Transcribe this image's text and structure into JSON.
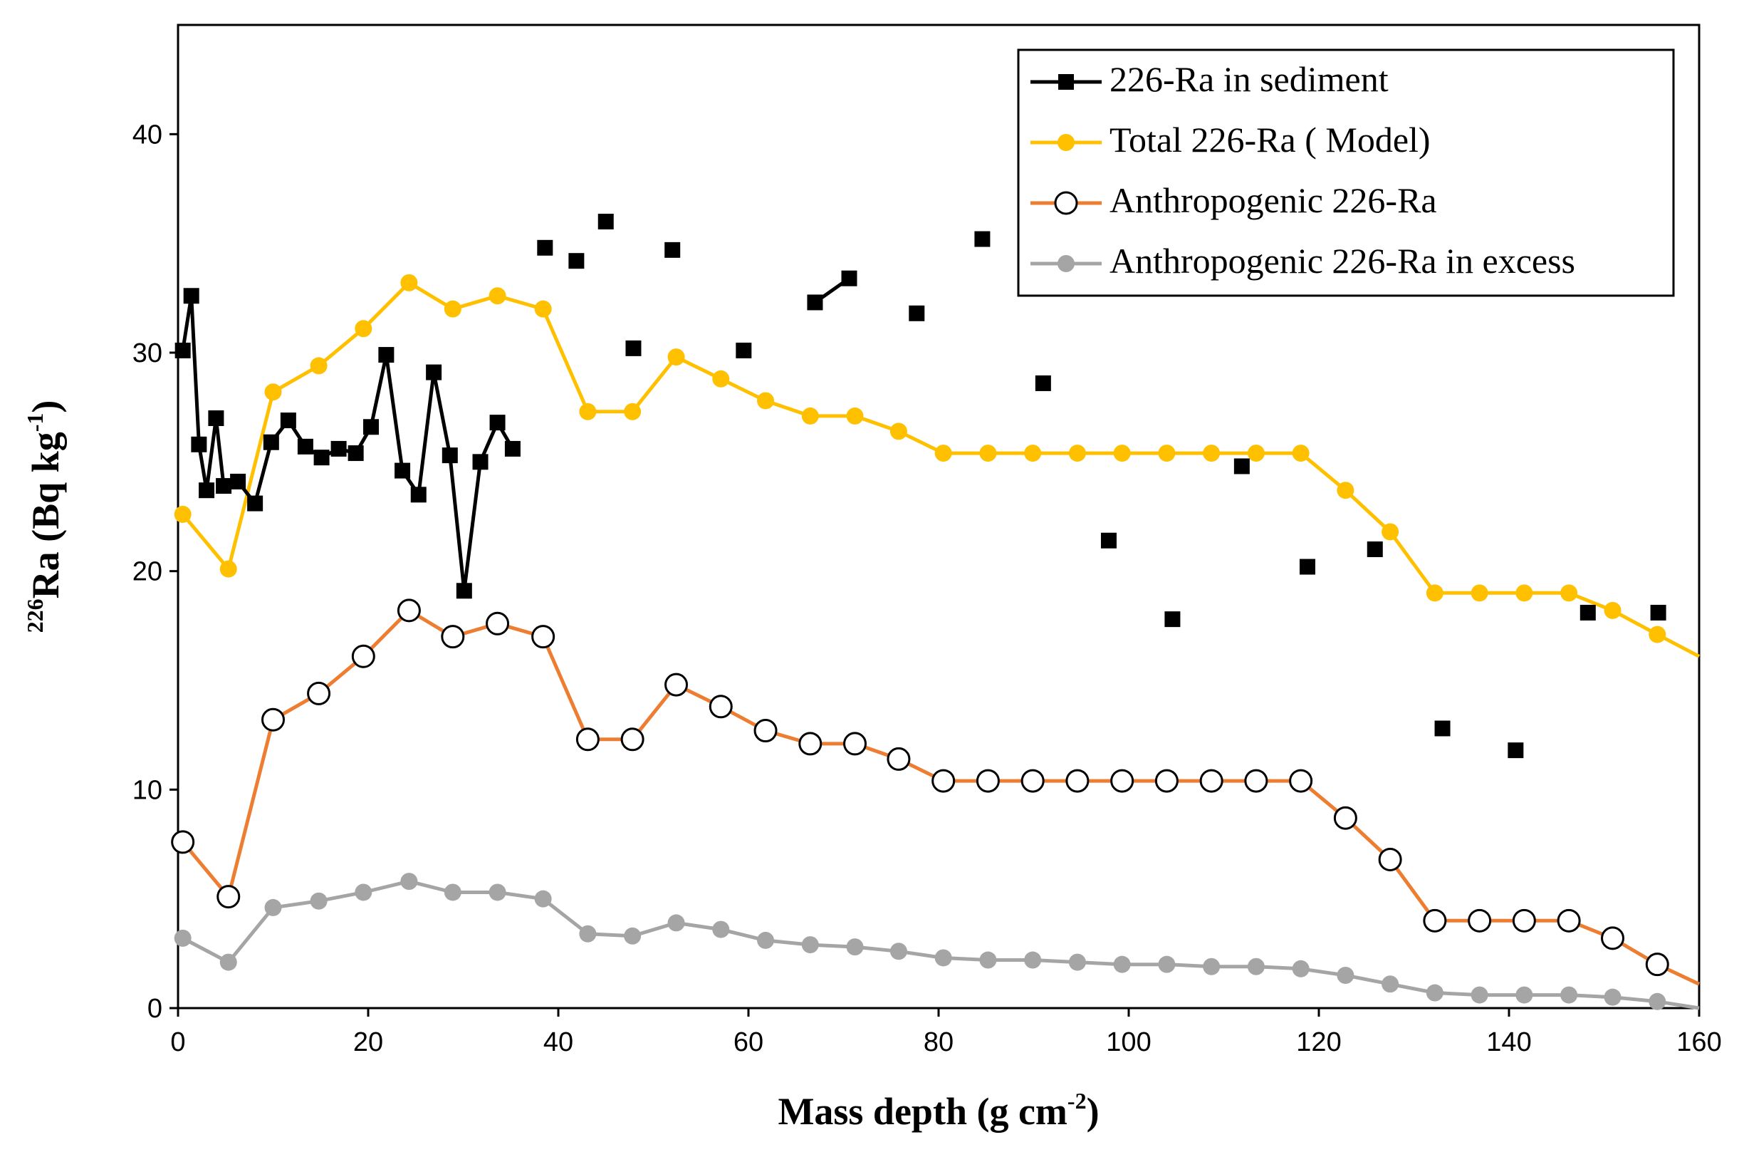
{
  "chart_data": {
    "type": "line",
    "xlabel_main": "Mass depth (g cm",
    "xlabel_sup": "-2",
    "xlabel_end": ")",
    "ylabel_sup_pre": "226",
    "ylabel_main": "Ra (Bq kg",
    "ylabel_sup": "-1",
    "ylabel_end": ")",
    "xlim": [
      0,
      160
    ],
    "ylim": [
      0,
      45
    ],
    "xticks": [
      0,
      20,
      40,
      60,
      80,
      100,
      120,
      140,
      160
    ],
    "yticks": [
      0,
      10,
      20,
      30,
      40
    ],
    "legend_position": "top-right",
    "series": [
      {
        "name": "226-Ra in sediment",
        "color": "#000000",
        "marker": "square",
        "connected": [
          [
            0.5,
            30.1
          ],
          [
            1.4,
            32.6
          ],
          [
            2.2,
            25.8
          ],
          [
            3.0,
            23.7
          ],
          [
            4.0,
            27.0
          ],
          [
            4.8,
            23.9
          ],
          [
            6.3,
            24.1
          ],
          [
            8.1,
            23.1
          ],
          [
            9.8,
            25.9
          ],
          [
            11.6,
            26.9
          ],
          [
            13.4,
            25.7
          ],
          [
            15.1,
            25.2
          ],
          [
            16.9,
            25.6
          ],
          [
            18.7,
            25.4
          ],
          [
            20.3,
            26.6
          ],
          [
            21.9,
            29.9
          ],
          [
            23.6,
            24.6
          ],
          [
            25.3,
            23.5
          ],
          [
            26.9,
            29.1
          ],
          [
            28.6,
            25.3
          ],
          [
            30.1,
            19.1
          ],
          [
            31.8,
            25.0
          ],
          [
            33.6,
            26.8
          ],
          [
            35.2,
            25.6
          ]
        ],
        "connected_pair": [
          [
            67.0,
            32.3
          ],
          [
            70.6,
            33.4
          ]
        ],
        "scattered": [
          [
            38.6,
            34.8
          ],
          [
            41.9,
            34.2
          ],
          [
            45.0,
            36.0
          ],
          [
            47.9,
            30.2
          ],
          [
            52.0,
            34.7
          ],
          [
            59.5,
            30.1
          ],
          [
            77.7,
            31.8
          ],
          [
            84.6,
            35.2
          ],
          [
            91.0,
            28.6
          ],
          [
            97.9,
            21.4
          ],
          [
            104.6,
            17.8
          ],
          [
            111.9,
            24.8
          ],
          [
            118.8,
            20.2
          ],
          [
            125.9,
            21.0
          ],
          [
            133.0,
            12.8
          ],
          [
            140.7,
            11.8
          ],
          [
            148.3,
            18.1
          ],
          [
            155.7,
            18.1
          ]
        ]
      },
      {
        "name": "Total 226-Ra ( Model)",
        "color": "#FFC000",
        "marker": "circle-filled",
        "x": [
          0.5,
          5.3,
          10.0,
          14.8,
          19.5,
          24.3,
          28.9,
          33.6,
          38.4,
          43.1,
          47.8,
          52.4,
          57.1,
          61.8,
          66.5,
          71.2,
          75.8,
          80.5,
          85.2,
          89.9,
          94.6,
          99.3,
          104.0,
          108.7,
          113.4,
          118.1,
          122.8,
          127.5,
          132.2,
          136.9,
          141.6,
          146.3,
          150.9,
          155.6,
          160.0
        ],
        "values": [
          22.6,
          20.1,
          28.2,
          29.4,
          31.1,
          33.2,
          32.0,
          32.6,
          32.0,
          27.3,
          27.3,
          29.8,
          28.8,
          27.8,
          27.1,
          27.1,
          26.4,
          25.4,
          25.4,
          25.4,
          25.4,
          25.4,
          25.4,
          25.4,
          25.4,
          25.4,
          23.7,
          21.8,
          19.0,
          19.0,
          19.0,
          19.0,
          18.2,
          17.1,
          16.1
        ]
      },
      {
        "name": "Anthropogenic 226-Ra",
        "color": "#ED7D31",
        "marker": "circle-open",
        "x": [
          0.5,
          5.3,
          10.0,
          14.8,
          19.5,
          24.3,
          28.9,
          33.6,
          38.4,
          43.1,
          47.8,
          52.4,
          57.1,
          61.8,
          66.5,
          71.2,
          75.8,
          80.5,
          85.2,
          89.9,
          94.6,
          99.3,
          104.0,
          108.7,
          113.4,
          118.1,
          122.8,
          127.5,
          132.2,
          136.9,
          141.6,
          146.3,
          150.9,
          155.6,
          160.0
        ],
        "values": [
          7.6,
          5.1,
          13.2,
          14.4,
          16.1,
          18.2,
          17.0,
          17.6,
          17.0,
          12.3,
          12.3,
          14.8,
          13.8,
          12.7,
          12.1,
          12.1,
          11.4,
          10.4,
          10.4,
          10.4,
          10.4,
          10.4,
          10.4,
          10.4,
          10.4,
          10.4,
          8.7,
          6.8,
          4.0,
          4.0,
          4.0,
          4.0,
          3.2,
          2.0,
          1.1
        ]
      },
      {
        "name": "Anthropogenic 226-Ra in excess",
        "color": "#A5A5A5",
        "marker": "circle-filled",
        "x": [
          0.5,
          5.3,
          10.0,
          14.8,
          19.5,
          24.3,
          28.9,
          33.6,
          38.4,
          43.1,
          47.8,
          52.4,
          57.1,
          61.8,
          66.5,
          71.2,
          75.8,
          80.5,
          85.2,
          89.9,
          94.6,
          99.3,
          104.0,
          108.7,
          113.4,
          118.1,
          122.8,
          127.5,
          132.2,
          136.9,
          141.6,
          146.3,
          150.9,
          155.6,
          160.0
        ],
        "values": [
          3.2,
          2.1,
          4.6,
          4.9,
          5.3,
          5.8,
          5.3,
          5.3,
          5.0,
          3.4,
          3.3,
          3.9,
          3.6,
          3.1,
          2.9,
          2.8,
          2.6,
          2.3,
          2.2,
          2.2,
          2.1,
          2.0,
          2.0,
          1.9,
          1.9,
          1.8,
          1.5,
          1.1,
          0.7,
          0.6,
          0.6,
          0.6,
          0.5,
          0.3,
          0.0
        ]
      }
    ]
  }
}
